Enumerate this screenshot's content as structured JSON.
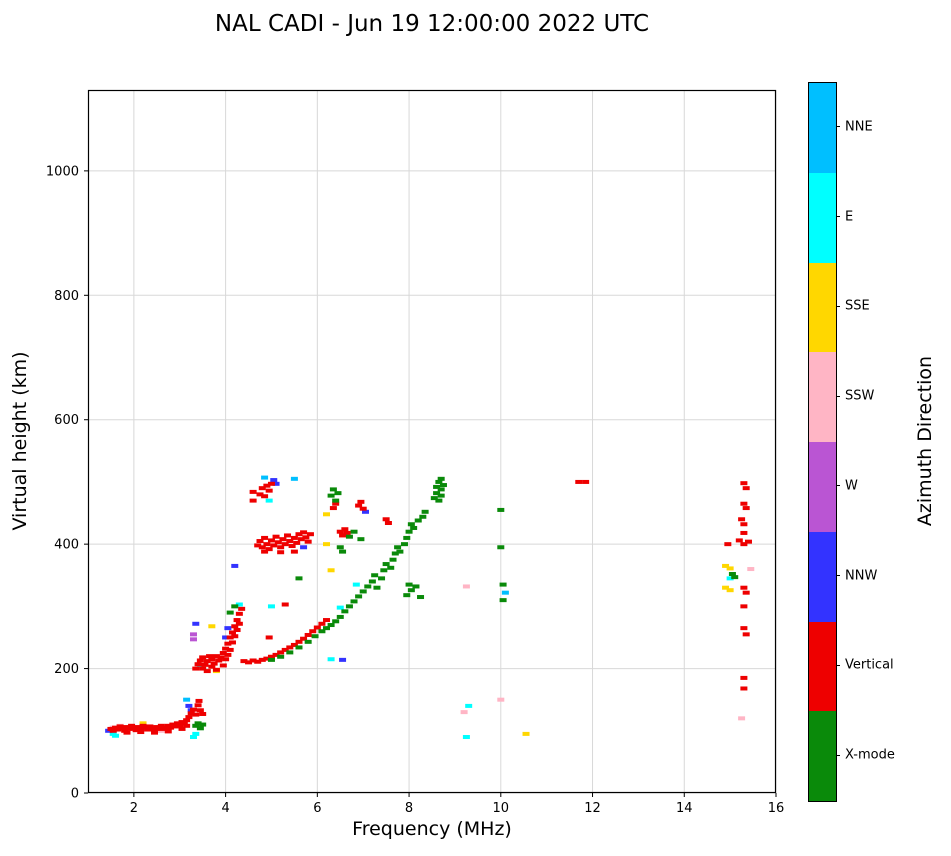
{
  "title": "NAL CADI - Jun 19 12:00:00 2022 UTC",
  "colors": {
    "grid": "#d8d8d8",
    "nne": "#00BFFF",
    "e": "#00FFFF",
    "sse": "#FFD700",
    "ssw": "#FFB5C5",
    "w": "#BA55D3",
    "nnw": "#3333FF",
    "vertical": "#EE0000",
    "xmode": "#0a8a0a"
  },
  "colorbar": {
    "label": "Azimuth Direction",
    "segments": [
      {
        "key": "nne",
        "label": "NNE"
      },
      {
        "key": "e",
        "label": "E"
      },
      {
        "key": "sse",
        "label": "SSE"
      },
      {
        "key": "ssw",
        "label": "SSW"
      },
      {
        "key": "w",
        "label": "W"
      },
      {
        "key": "nnw",
        "label": "NNW"
      },
      {
        "key": "vertical",
        "label": "Vertical"
      },
      {
        "key": "xmode",
        "label": "X-mode"
      }
    ]
  },
  "chart_data": {
    "type": "scatter",
    "xlabel": "Frequency (MHz)",
    "ylabel": "Virtual height (km)",
    "xlim": [
      1,
      16
    ],
    "ylim": [
      0,
      1130
    ],
    "xticks": [
      2,
      4,
      6,
      8,
      10,
      12,
      14,
      16
    ],
    "yticks": [
      0,
      200,
      400,
      600,
      800,
      1000
    ],
    "grid": true,
    "series": [
      {
        "key": "ssw",
        "name": "SSW",
        "points": [
          [
            1.55,
            105
          ],
          [
            1.7,
            108
          ],
          [
            2.05,
            102
          ],
          [
            2.35,
            106
          ],
          [
            2.6,
            100
          ],
          [
            9.2,
            130
          ],
          [
            9.25,
            332
          ],
          [
            10.0,
            150
          ],
          [
            15.45,
            360
          ],
          [
            15.25,
            120
          ]
        ]
      },
      {
        "key": "sse",
        "name": "SSE",
        "points": [
          [
            2.2,
            112
          ],
          [
            3.7,
            268
          ],
          [
            3.8,
            196
          ],
          [
            6.2,
            400
          ],
          [
            6.2,
            448
          ],
          [
            6.3,
            358
          ],
          [
            10.55,
            95
          ],
          [
            14.9,
            365
          ],
          [
            15.0,
            361
          ],
          [
            14.9,
            330
          ],
          [
            15.0,
            326
          ]
        ]
      },
      {
        "key": "e",
        "name": "E",
        "points": [
          [
            1.55,
            95
          ],
          [
            1.6,
            92
          ],
          [
            3.3,
            90
          ],
          [
            3.35,
            95
          ],
          [
            3.45,
            205
          ],
          [
            4.3,
            303
          ],
          [
            4.95,
            470
          ],
          [
            5.0,
            300
          ],
          [
            6.3,
            215
          ],
          [
            6.5,
            298
          ],
          [
            6.85,
            335
          ],
          [
            9.25,
            90
          ],
          [
            9.3,
            140
          ],
          [
            15.0,
            345
          ]
        ]
      },
      {
        "key": "nne",
        "name": "NNE",
        "points": [
          [
            3.15,
            150
          ],
          [
            4.85,
            507
          ],
          [
            5.5,
            505
          ],
          [
            10.1,
            322
          ]
        ]
      },
      {
        "key": "w",
        "name": "W",
        "points": [
          [
            3.3,
            255
          ],
          [
            3.3,
            247
          ]
        ]
      },
      {
        "key": "nnw",
        "name": "NNW",
        "points": [
          [
            1.45,
            100
          ],
          [
            3.2,
            140
          ],
          [
            3.25,
            133
          ],
          [
            3.35,
            272
          ],
          [
            4.0,
            250
          ],
          [
            4.05,
            265
          ],
          [
            4.2,
            365
          ],
          [
            5.05,
            503
          ],
          [
            5.1,
            497
          ],
          [
            5.7,
            395
          ],
          [
            6.55,
            214
          ],
          [
            7.05,
            452
          ]
        ]
      },
      {
        "key": "vertical",
        "name": "Vertical",
        "points": [
          [
            1.5,
            103
          ],
          [
            1.55,
            100
          ],
          [
            1.6,
            105
          ],
          [
            1.65,
            102
          ],
          [
            1.7,
            107
          ],
          [
            1.75,
            104
          ],
          [
            1.8,
            100
          ],
          [
            1.85,
            106
          ],
          [
            1.9,
            103
          ],
          [
            1.95,
            108
          ],
          [
            2.0,
            104
          ],
          [
            2.05,
            101
          ],
          [
            2.1,
            106
          ],
          [
            2.15,
            103
          ],
          [
            2.2,
            108
          ],
          [
            2.25,
            105
          ],
          [
            2.3,
            102
          ],
          [
            2.35,
            107
          ],
          [
            2.4,
            104
          ],
          [
            2.45,
            101
          ],
          [
            2.5,
            106
          ],
          [
            2.55,
            103
          ],
          [
            2.6,
            108
          ],
          [
            2.65,
            105
          ],
          [
            2.7,
            103
          ],
          [
            2.75,
            108
          ],
          [
            2.8,
            105
          ],
          [
            2.85,
            110
          ],
          [
            2.9,
            107
          ],
          [
            2.95,
            112
          ],
          [
            3.0,
            109
          ],
          [
            3.05,
            114
          ],
          [
            3.1,
            112
          ],
          [
            3.15,
            117
          ],
          [
            3.2,
            122
          ],
          [
            3.25,
            128
          ],
          [
            3.3,
            134
          ],
          [
            3.35,
            126
          ],
          [
            3.15,
            108
          ],
          [
            3.05,
            103
          ],
          [
            2.75,
            99
          ],
          [
            2.45,
            97
          ],
          [
            2.15,
            98
          ],
          [
            1.85,
            97
          ],
          [
            3.4,
            141
          ],
          [
            3.45,
            133
          ],
          [
            3.5,
            127
          ],
          [
            3.42,
            148
          ],
          [
            3.35,
            200
          ],
          [
            3.4,
            207
          ],
          [
            3.45,
            213
          ],
          [
            3.5,
            200
          ],
          [
            3.5,
            218
          ],
          [
            3.55,
            206
          ],
          [
            3.6,
            196
          ],
          [
            3.6,
            212
          ],
          [
            3.65,
            220
          ],
          [
            3.7,
            203
          ],
          [
            3.7,
            215
          ],
          [
            3.75,
            208
          ],
          [
            3.8,
            198
          ],
          [
            3.8,
            220
          ],
          [
            3.85,
            213
          ],
          [
            3.9,
            218
          ],
          [
            3.95,
            205
          ],
          [
            3.95,
            225
          ],
          [
            4.0,
            215
          ],
          [
            4.0,
            232
          ],
          [
            4.05,
            222
          ],
          [
            4.05,
            240
          ],
          [
            4.1,
            230
          ],
          [
            4.1,
            250
          ],
          [
            4.15,
            242
          ],
          [
            4.15,
            258
          ],
          [
            4.2,
            252
          ],
          [
            4.2,
            268
          ],
          [
            4.25,
            262
          ],
          [
            4.25,
            278
          ],
          [
            4.3,
            272
          ],
          [
            4.3,
            288
          ],
          [
            4.35,
            296
          ],
          [
            4.4,
            212
          ],
          [
            4.5,
            210
          ],
          [
            4.6,
            213
          ],
          [
            4.7,
            211
          ],
          [
            4.8,
            214
          ],
          [
            4.9,
            216
          ],
          [
            4.95,
            250
          ],
          [
            5.0,
            219
          ],
          [
            5.1,
            222
          ],
          [
            5.2,
            226
          ],
          [
            5.3,
            230
          ],
          [
            5.3,
            303
          ],
          [
            5.4,
            234
          ],
          [
            5.5,
            238
          ],
          [
            5.6,
            243
          ],
          [
            5.7,
            248
          ],
          [
            5.8,
            254
          ],
          [
            5.9,
            260
          ],
          [
            6.0,
            266
          ],
          [
            6.1,
            272
          ],
          [
            6.2,
            278
          ],
          [
            4.7,
            398
          ],
          [
            4.75,
            405
          ],
          [
            4.8,
            395
          ],
          [
            4.85,
            410
          ],
          [
            4.85,
            388
          ],
          [
            4.9,
            400
          ],
          [
            4.95,
            392
          ],
          [
            5.0,
            406
          ],
          [
            5.05,
            398
          ],
          [
            5.1,
            412
          ],
          [
            5.15,
            403
          ],
          [
            5.2,
            395
          ],
          [
            5.2,
            387
          ],
          [
            5.25,
            408
          ],
          [
            5.3,
            400
          ],
          [
            5.35,
            414
          ],
          [
            5.4,
            405
          ],
          [
            5.45,
            397
          ],
          [
            5.5,
            410
          ],
          [
            5.5,
            388
          ],
          [
            5.55,
            402
          ],
          [
            5.6,
            416
          ],
          [
            5.65,
            408
          ],
          [
            5.7,
            419
          ],
          [
            5.75,
            411
          ],
          [
            5.8,
            404
          ],
          [
            5.85,
            416
          ],
          [
            4.6,
            470
          ],
          [
            4.6,
            484
          ],
          [
            4.75,
            480
          ],
          [
            4.8,
            490
          ],
          [
            4.85,
            477
          ],
          [
            4.9,
            494
          ],
          [
            4.95,
            486
          ],
          [
            5.0,
            497
          ],
          [
            6.35,
            458
          ],
          [
            6.4,
            465
          ],
          [
            6.5,
            420
          ],
          [
            6.55,
            414
          ],
          [
            6.6,
            424
          ],
          [
            6.65,
            418
          ],
          [
            6.9,
            462
          ],
          [
            6.95,
            468
          ],
          [
            7.0,
            457
          ],
          [
            7.5,
            440
          ],
          [
            7.55,
            434
          ],
          [
            11.7,
            500
          ],
          [
            11.85,
            500
          ],
          [
            15.3,
            498
          ],
          [
            15.35,
            490
          ],
          [
            15.3,
            465
          ],
          [
            15.35,
            458
          ],
          [
            15.25,
            440
          ],
          [
            15.3,
            432
          ],
          [
            15.3,
            418
          ],
          [
            15.2,
            406
          ],
          [
            15.3,
            400
          ],
          [
            15.4,
            404
          ],
          [
            14.95,
            400
          ],
          [
            15.3,
            330
          ],
          [
            15.35,
            322
          ],
          [
            15.3,
            300
          ],
          [
            15.3,
            265
          ],
          [
            15.35,
            255
          ],
          [
            15.3,
            185
          ],
          [
            15.3,
            168
          ]
        ]
      },
      {
        "key": "xmode",
        "name": "X-mode",
        "points": [
          [
            3.35,
            108
          ],
          [
            3.4,
            112
          ],
          [
            3.45,
            104
          ],
          [
            3.5,
            110
          ],
          [
            5.0,
            214
          ],
          [
            5.2,
            219
          ],
          [
            5.4,
            226
          ],
          [
            5.6,
            234
          ],
          [
            5.6,
            345
          ],
          [
            5.8,
            243
          ],
          [
            5.95,
            252
          ],
          [
            6.1,
            260
          ],
          [
            6.2,
            265
          ],
          [
            6.3,
            270
          ],
          [
            6.4,
            276
          ],
          [
            6.5,
            283
          ],
          [
            6.6,
            292
          ],
          [
            6.7,
            300
          ],
          [
            6.8,
            308
          ],
          [
            6.9,
            316
          ],
          [
            7.0,
            324
          ],
          [
            7.1,
            332
          ],
          [
            7.2,
            340
          ],
          [
            7.25,
            350
          ],
          [
            7.3,
            330
          ],
          [
            7.4,
            345
          ],
          [
            7.45,
            358
          ],
          [
            7.5,
            368
          ],
          [
            7.6,
            362
          ],
          [
            7.65,
            375
          ],
          [
            7.7,
            385
          ],
          [
            7.75,
            395
          ],
          [
            7.8,
            388
          ],
          [
            7.9,
            400
          ],
          [
            7.95,
            410
          ],
          [
            8.0,
            420
          ],
          [
            8.05,
            432
          ],
          [
            8.1,
            426
          ],
          [
            8.2,
            438
          ],
          [
            8.3,
            444
          ],
          [
            8.35,
            452
          ],
          [
            4.1,
            290
          ],
          [
            4.2,
            300
          ],
          [
            8.55,
            474
          ],
          [
            8.6,
            482
          ],
          [
            8.6,
            492
          ],
          [
            8.65,
            500
          ],
          [
            8.65,
            470
          ],
          [
            8.7,
            488
          ],
          [
            8.7,
            478
          ],
          [
            8.7,
            505
          ],
          [
            8.75,
            495
          ],
          [
            6.3,
            478
          ],
          [
            6.35,
            488
          ],
          [
            6.4,
            470
          ],
          [
            6.45,
            482
          ],
          [
            6.5,
            395
          ],
          [
            6.55,
            388
          ],
          [
            6.7,
            412
          ],
          [
            6.8,
            420
          ],
          [
            6.95,
            408
          ],
          [
            7.95,
            318
          ],
          [
            8.05,
            326
          ],
          [
            8.15,
            332
          ],
          [
            8.25,
            315
          ],
          [
            8.0,
            335
          ],
          [
            10.0,
            455
          ],
          [
            10.0,
            395
          ],
          [
            10.05,
            335
          ],
          [
            10.05,
            310
          ],
          [
            15.05,
            352
          ],
          [
            15.1,
            347
          ]
        ]
      }
    ]
  }
}
